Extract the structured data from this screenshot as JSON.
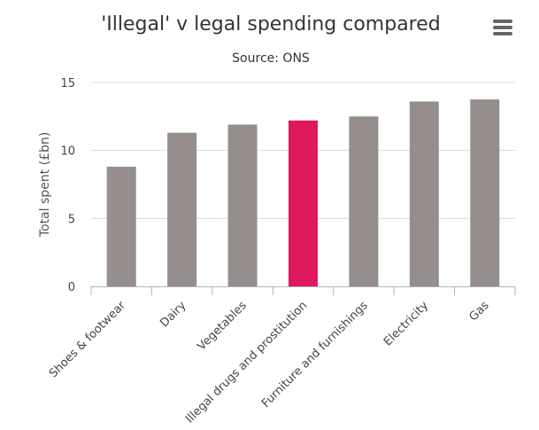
{
  "chart_data": {
    "type": "bar",
    "title": "'Illegal' v legal spending compared",
    "subtitle": "Source: ONS",
    "ylabel": "Total spent (£bn)",
    "xlabel": "",
    "ylim": [
      0,
      15
    ],
    "yticks": [
      0,
      5,
      10,
      15
    ],
    "categories": [
      "Shoes & footwear",
      "Dairy",
      "Vegetables",
      "Illegal drugs and prostitution",
      "Furniture and furnishings",
      "Electricity",
      "Gas"
    ],
    "values": [
      8.8,
      11.3,
      11.9,
      12.2,
      12.5,
      13.6,
      13.75
    ],
    "colors": [
      "#958e8c",
      "#958e8c",
      "#958e8c",
      "#e0185e",
      "#958e8c",
      "#958e8c",
      "#958e8c"
    ],
    "grid": true,
    "legend": "none"
  },
  "menu": {
    "icon": "hamburger-menu-icon"
  }
}
